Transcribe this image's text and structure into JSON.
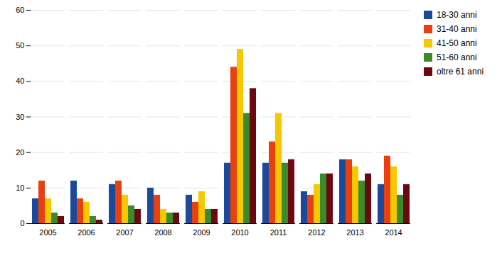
{
  "chart_data": {
    "type": "bar",
    "categories": [
      "2005",
      "2006",
      "2007",
      "2008",
      "2009",
      "2010",
      "2011",
      "2012",
      "2013",
      "2014"
    ],
    "series": [
      {
        "name": "18-30 anni",
        "color": "#1B4A9B",
        "values": [
          7,
          12,
          11,
          10,
          8,
          17,
          17,
          9,
          18,
          11
        ]
      },
      {
        "name": "31-40 anni",
        "color": "#E84010",
        "values": [
          12,
          7,
          12,
          8,
          6,
          44,
          23,
          8,
          18,
          19
        ]
      },
      {
        "name": "41-50 anni",
        "color": "#F5C800",
        "values": [
          7,
          6,
          8,
          4,
          9,
          49,
          31,
          11,
          16,
          16
        ]
      },
      {
        "name": "51-60 anni",
        "color": "#3A8C2A",
        "values": [
          3,
          2,
          5,
          3,
          4,
          31,
          17,
          14,
          12,
          8
        ]
      },
      {
        "name": "oltre 61 anni",
        "color": "#6B0810",
        "values": [
          2,
          1,
          4,
          3,
          4,
          38,
          18,
          14,
          14,
          11
        ]
      }
    ],
    "ylim": [
      0,
      60
    ],
    "yticks": [
      0,
      10,
      20,
      30,
      40,
      50,
      60
    ],
    "grid": true,
    "legend": "upper right"
  }
}
